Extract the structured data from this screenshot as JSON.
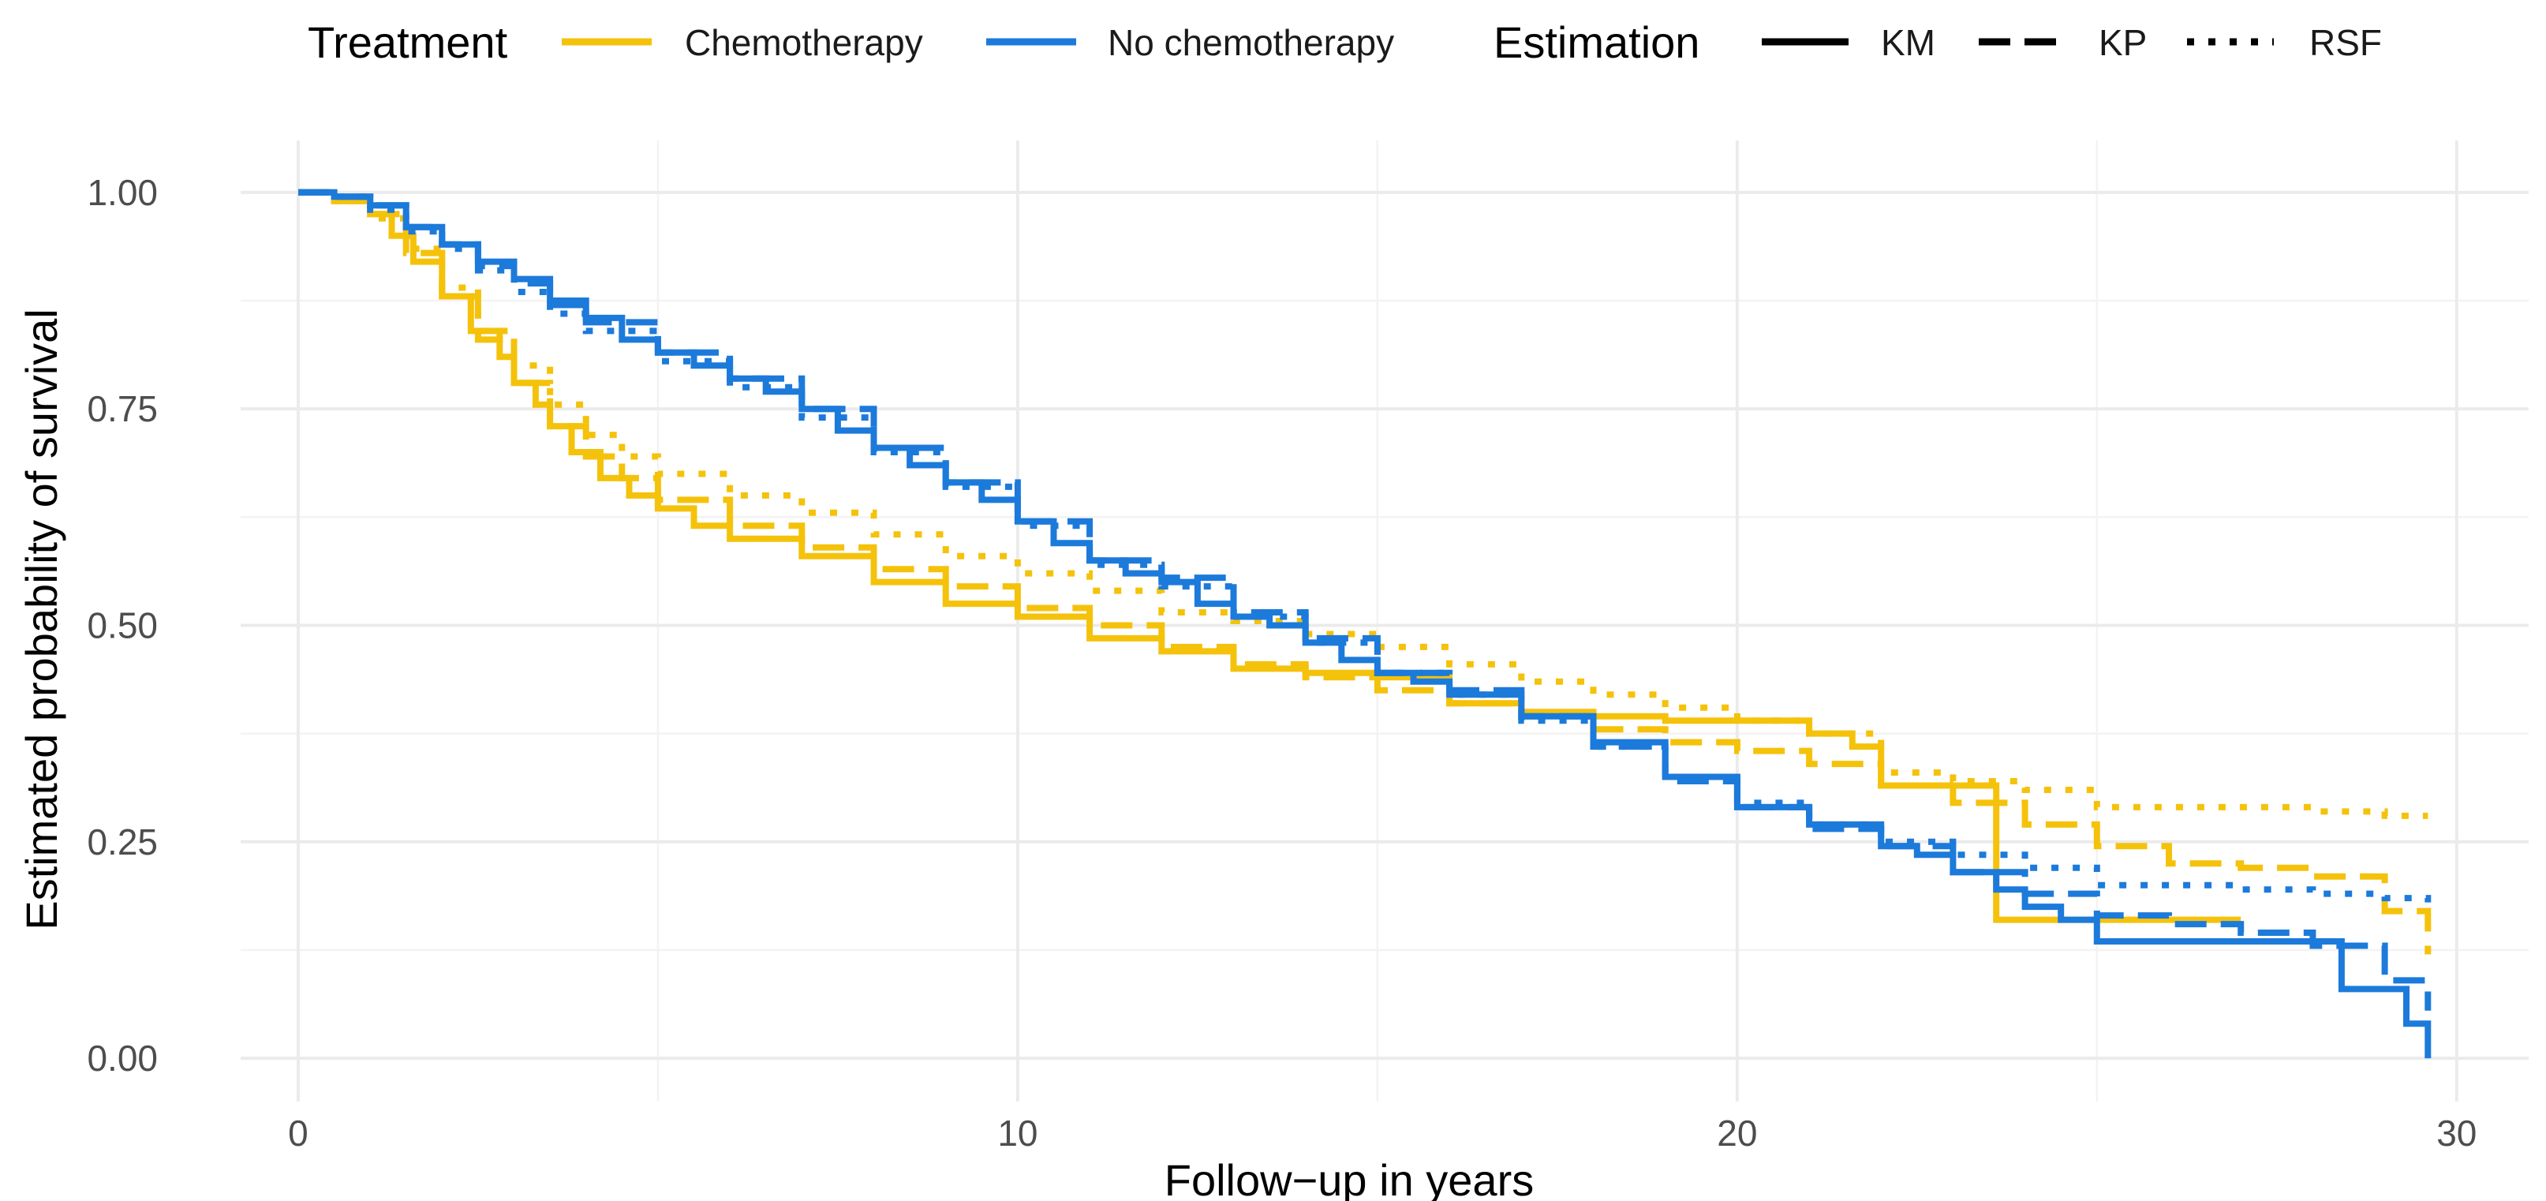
{
  "chart_data": {
    "type": "line",
    "step": true,
    "xlabel": "Follow−up in years",
    "ylabel": "Estimated probability of survival",
    "xlim": [
      -0.8,
      31
    ],
    "ylim": [
      -0.05,
      1.06
    ],
    "x_ticks": [
      0,
      10,
      20,
      30
    ],
    "x_tick_labels": [
      "0",
      "10",
      "20",
      "30"
    ],
    "y_ticks": [
      0,
      0.25,
      0.5,
      0.75,
      1.0
    ],
    "y_tick_labels": [
      "0.00",
      "0.25",
      "0.50",
      "0.75",
      "1.00"
    ],
    "grid": true,
    "legend": {
      "position": "top",
      "groups": [
        {
          "title": "Treatment",
          "aesthetic": "color",
          "entries": [
            {
              "label": "Chemotherapy",
              "color": "#F5C20B"
            },
            {
              "label": "No chemotherapy",
              "color": "#1C7ADB"
            }
          ]
        },
        {
          "title": "Estimation",
          "aesthetic": "linetype",
          "entries": [
            {
              "label": "KM",
              "linetype": "solid"
            },
            {
              "label": "KP",
              "linetype": "dashed"
            },
            {
              "label": "RSF",
              "linetype": "dotted"
            }
          ]
        }
      ]
    },
    "series": [
      {
        "name": "Chemotherapy - KM",
        "treatment": "Chemotherapy",
        "estimation": "KM",
        "color": "#F5C20B",
        "linetype": "solid",
        "x": [
          0,
          0.5,
          1.0,
          1.3,
          1.6,
          2.0,
          2.4,
          2.8,
          3.0,
          3.3,
          3.5,
          3.8,
          4.2,
          4.6,
          5.0,
          5.5,
          6.0,
          7.0,
          8.0,
          9.0,
          10.0,
          11.0,
          12.0,
          13.0,
          14.0,
          15.0,
          16.0,
          17.0,
          18.0,
          19.0,
          20.0,
          21.0,
          21.6,
          22.0,
          23.2,
          23.6,
          24.0,
          26.0,
          27.0
        ],
        "y": [
          1.0,
          0.99,
          0.975,
          0.95,
          0.92,
          0.88,
          0.84,
          0.81,
          0.78,
          0.755,
          0.73,
          0.7,
          0.67,
          0.65,
          0.635,
          0.615,
          0.6,
          0.58,
          0.55,
          0.525,
          0.51,
          0.485,
          0.47,
          0.45,
          0.445,
          0.44,
          0.41,
          0.4,
          0.395,
          0.39,
          0.39,
          0.375,
          0.36,
          0.315,
          0.315,
          0.16,
          0.16,
          0.16,
          0.16
        ]
      },
      {
        "name": "Chemotherapy - KP",
        "treatment": "Chemotherapy",
        "estimation": "KP",
        "color": "#F5C20B",
        "linetype": "dashed",
        "x": [
          0,
          0.5,
          1.0,
          1.5,
          2.0,
          2.5,
          3.0,
          3.5,
          4.0,
          4.5,
          5.0,
          6.0,
          7.0,
          8.0,
          9.0,
          10.0,
          11.0,
          12.0,
          13.0,
          14.0,
          15.0,
          16.0,
          17.0,
          18.0,
          19.0,
          20.0,
          21.0,
          22.0,
          23.0,
          24.0,
          25.0,
          26.0,
          27.0,
          28.0,
          29.0,
          29.6
        ],
        "y": [
          1.0,
          0.99,
          0.975,
          0.93,
          0.88,
          0.83,
          0.78,
          0.73,
          0.695,
          0.67,
          0.645,
          0.615,
          0.59,
          0.565,
          0.545,
          0.52,
          0.5,
          0.475,
          0.455,
          0.44,
          0.425,
          0.41,
          0.395,
          0.38,
          0.365,
          0.355,
          0.34,
          0.315,
          0.295,
          0.27,
          0.245,
          0.225,
          0.22,
          0.21,
          0.17,
          0.12
        ]
      },
      {
        "name": "Chemotherapy - RSF",
        "treatment": "Chemotherapy",
        "estimation": "RSF",
        "color": "#F5C20B",
        "linetype": "dotted",
        "x": [
          0,
          0.5,
          1.0,
          1.5,
          2.0,
          2.5,
          3.0,
          3.5,
          4.0,
          4.5,
          5.0,
          6.0,
          7.0,
          8.0,
          9.0,
          10.0,
          11.0,
          12.0,
          13.0,
          14.0,
          15.0,
          16.0,
          17.0,
          18.0,
          19.0,
          20.0,
          21.0,
          22.0,
          23.0,
          24.0,
          25.0,
          26.0,
          27.0,
          28.0,
          29.0,
          29.6
        ],
        "y": [
          1.0,
          0.99,
          0.97,
          0.935,
          0.89,
          0.84,
          0.8,
          0.755,
          0.72,
          0.695,
          0.675,
          0.65,
          0.63,
          0.605,
          0.58,
          0.56,
          0.54,
          0.515,
          0.505,
          0.49,
          0.475,
          0.455,
          0.435,
          0.42,
          0.405,
          0.39,
          0.375,
          0.33,
          0.32,
          0.31,
          0.29,
          0.29,
          0.29,
          0.285,
          0.28,
          0.28
        ]
      },
      {
        "name": "No chemotherapy - KM",
        "treatment": "No chemotherapy",
        "estimation": "KM",
        "color": "#1C7ADB",
        "linetype": "solid",
        "x": [
          0,
          0.5,
          1.0,
          1.5,
          2.0,
          2.5,
          3.0,
          3.5,
          4.0,
          4.5,
          5.0,
          5.5,
          6.0,
          6.5,
          7.0,
          7.5,
          8.0,
          8.5,
          9.0,
          9.5,
          10.0,
          10.5,
          11.0,
          11.5,
          12.0,
          12.5,
          13.0,
          13.5,
          14.0,
          14.5,
          15.0,
          15.5,
          16.0,
          17.0,
          18.0,
          19.0,
          20.0,
          21.0,
          22.0,
          22.5,
          23.0,
          23.6,
          24.0,
          24.5,
          25.0,
          26.0,
          27.0,
          28.0,
          28.4,
          29.0,
          29.3,
          29.6
        ],
        "y": [
          1.0,
          0.995,
          0.985,
          0.96,
          0.94,
          0.92,
          0.9,
          0.875,
          0.855,
          0.83,
          0.815,
          0.8,
          0.785,
          0.77,
          0.75,
          0.725,
          0.705,
          0.685,
          0.665,
          0.645,
          0.62,
          0.595,
          0.575,
          0.56,
          0.55,
          0.525,
          0.51,
          0.5,
          0.48,
          0.46,
          0.445,
          0.435,
          0.42,
          0.395,
          0.365,
          0.325,
          0.29,
          0.27,
          0.245,
          0.235,
          0.215,
          0.195,
          0.175,
          0.16,
          0.135,
          0.135,
          0.135,
          0.135,
          0.08,
          0.08,
          0.04,
          0.0
        ]
      },
      {
        "name": "No chemotherapy - KP",
        "treatment": "No chemotherapy",
        "estimation": "KP",
        "color": "#1C7ADB",
        "linetype": "dashed",
        "x": [
          0,
          0.5,
          1.0,
          1.5,
          2.0,
          2.5,
          3.0,
          3.5,
          4.0,
          5.0,
          6.0,
          7.0,
          8.0,
          9.0,
          10.0,
          11.0,
          12.0,
          13.0,
          14.0,
          15.0,
          16.0,
          17.0,
          18.0,
          19.0,
          20.0,
          21.0,
          22.0,
          23.0,
          24.0,
          25.0,
          26.0,
          27.0,
          28.0,
          29.0,
          29.6
        ],
        "y": [
          1.0,
          0.995,
          0.985,
          0.96,
          0.94,
          0.915,
          0.895,
          0.87,
          0.85,
          0.815,
          0.785,
          0.75,
          0.705,
          0.665,
          0.62,
          0.575,
          0.555,
          0.515,
          0.485,
          0.445,
          0.425,
          0.395,
          0.36,
          0.32,
          0.29,
          0.265,
          0.245,
          0.215,
          0.19,
          0.165,
          0.155,
          0.145,
          0.13,
          0.09,
          0.055
        ]
      },
      {
        "name": "No chemotherapy - RSF",
        "treatment": "No chemotherapy",
        "estimation": "RSF",
        "color": "#1C7ADB",
        "linetype": "dotted",
        "x": [
          0,
          0.5,
          1.0,
          1.5,
          2.0,
          2.5,
          3.0,
          3.5,
          4.0,
          5.0,
          6.0,
          7.0,
          8.0,
          9.0,
          10.0,
          11.0,
          12.0,
          13.0,
          14.0,
          15.0,
          16.0,
          17.0,
          18.0,
          19.0,
          20.0,
          21.0,
          22.0,
          23.0,
          24.0,
          25.0,
          26.0,
          27.0,
          28.0,
          29.0,
          29.6
        ],
        "y": [
          1.0,
          0.995,
          0.98,
          0.955,
          0.935,
          0.91,
          0.885,
          0.86,
          0.84,
          0.805,
          0.775,
          0.74,
          0.7,
          0.66,
          0.615,
          0.57,
          0.545,
          0.51,
          0.48,
          0.445,
          0.42,
          0.39,
          0.36,
          0.325,
          0.295,
          0.27,
          0.25,
          0.235,
          0.22,
          0.2,
          0.2,
          0.195,
          0.19,
          0.185,
          0.18
        ]
      }
    ]
  }
}
